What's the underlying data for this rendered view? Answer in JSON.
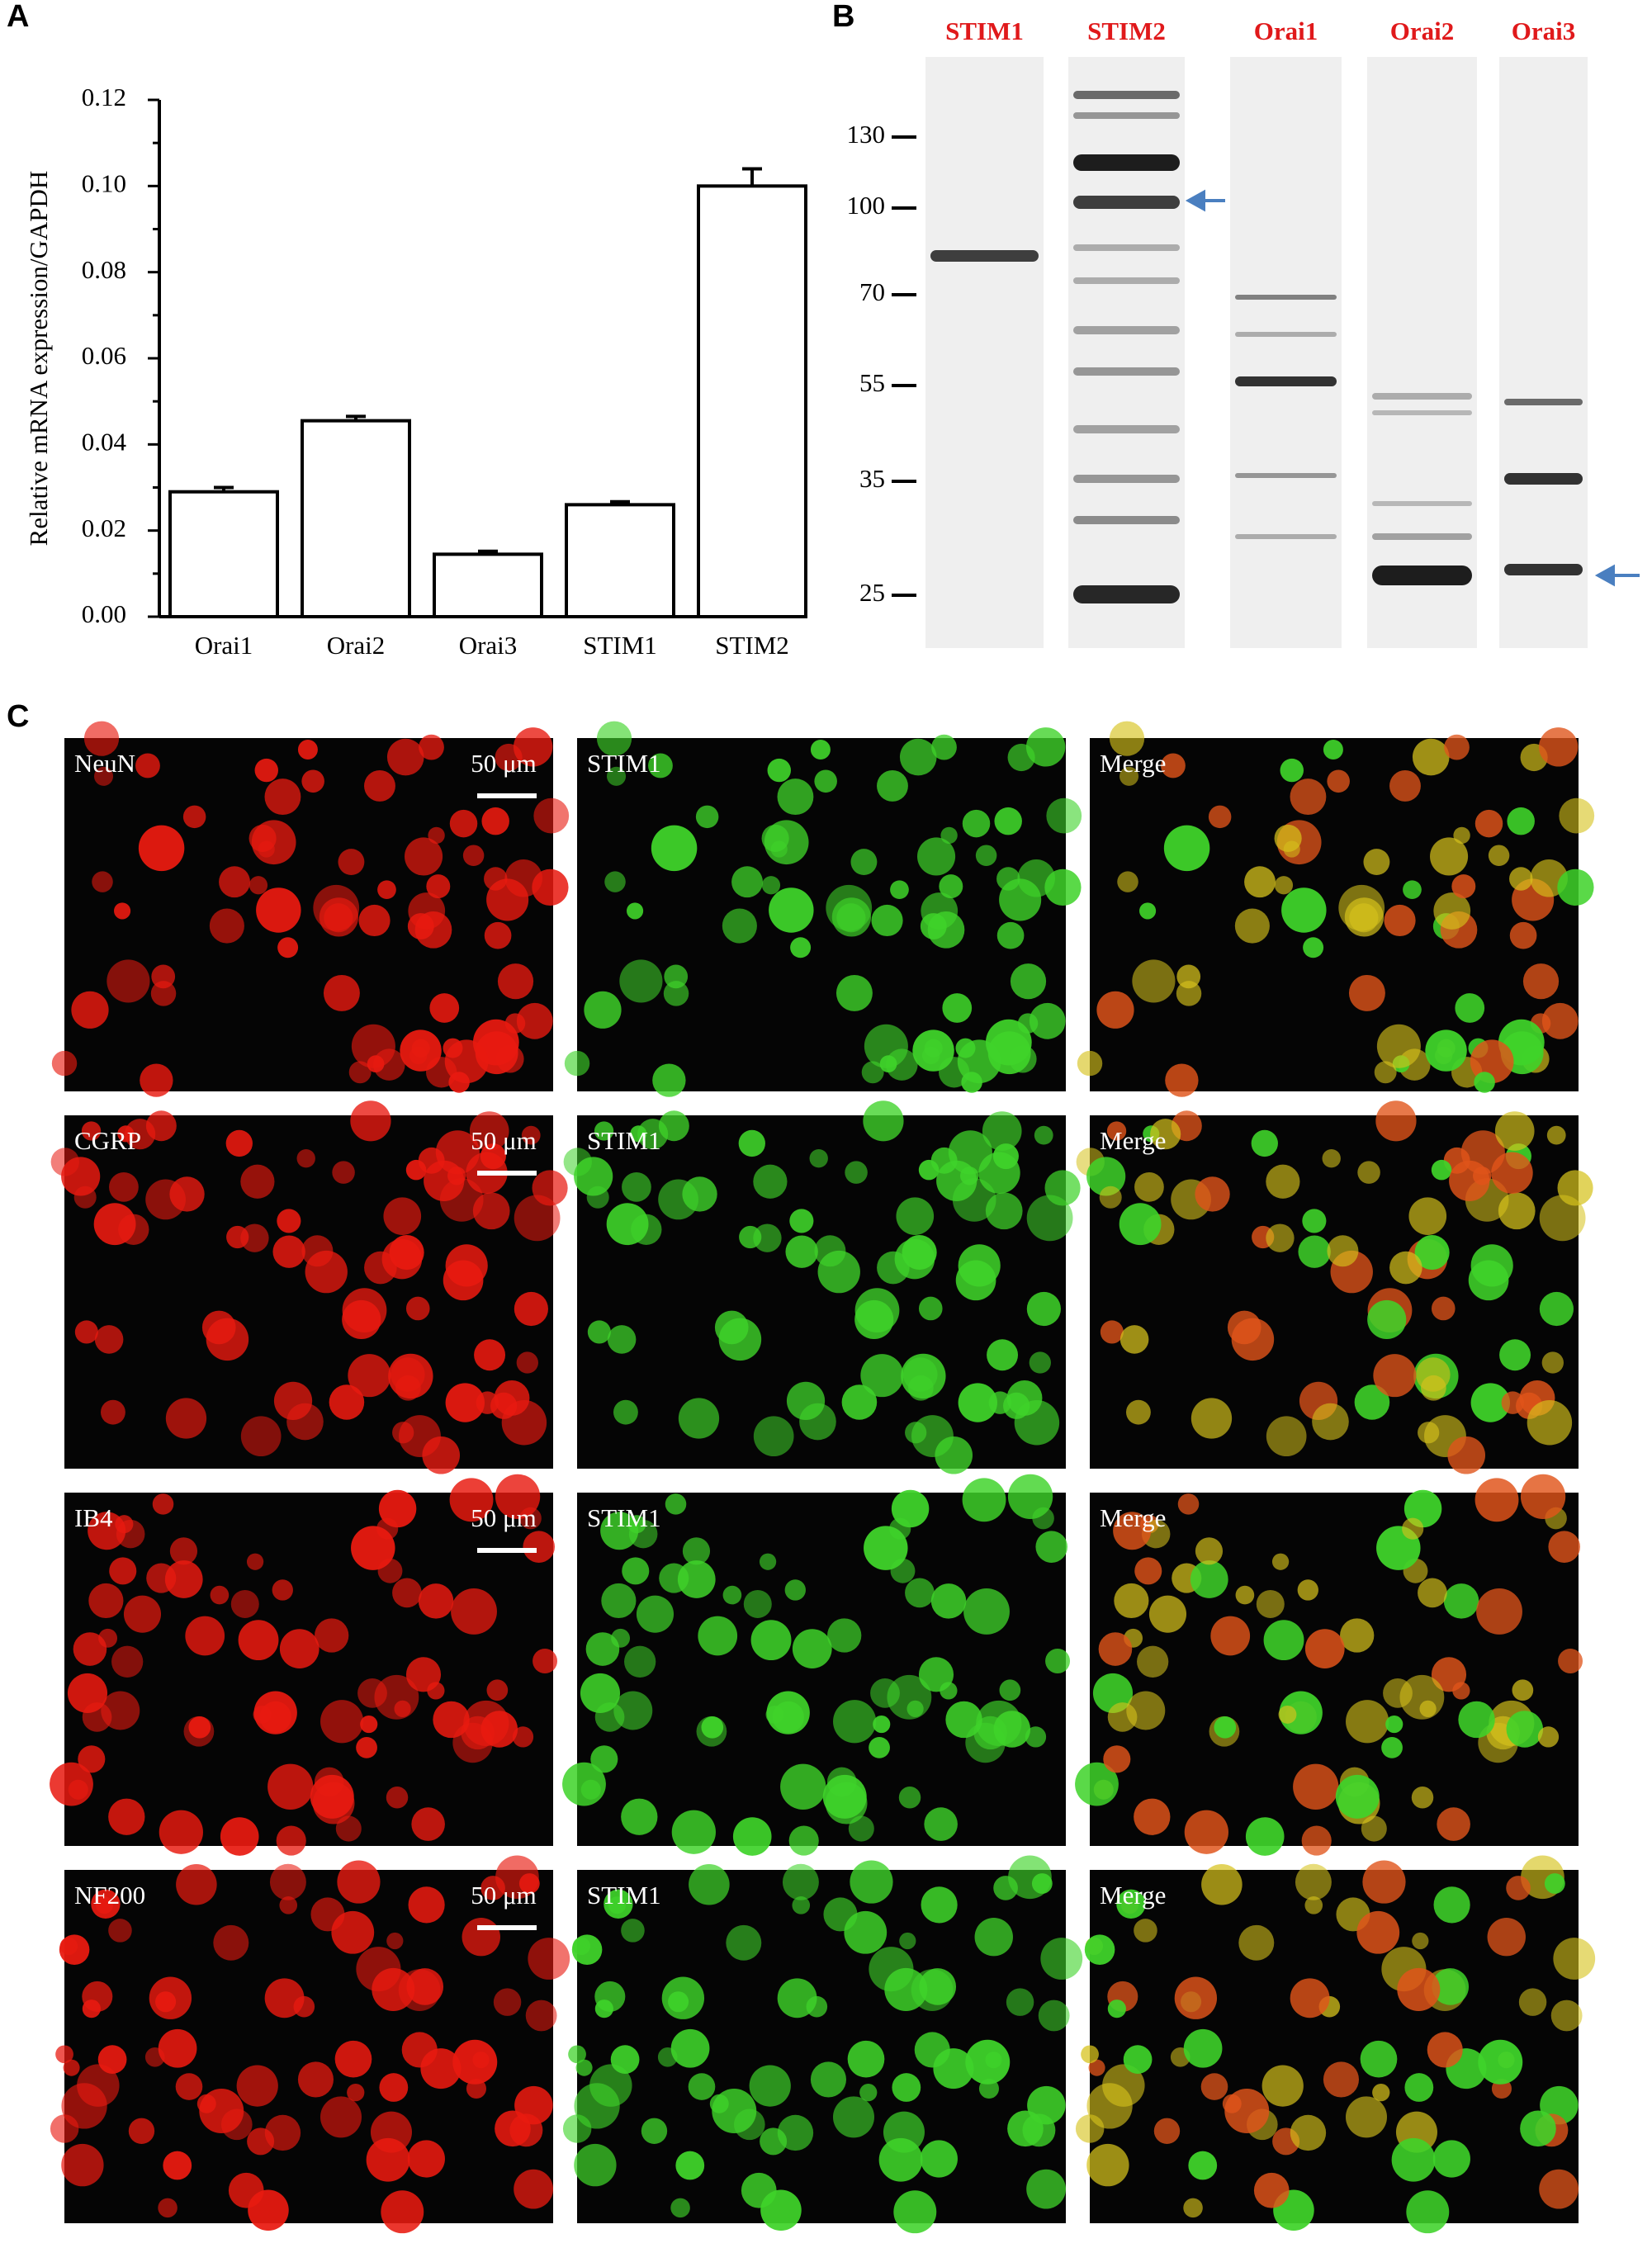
{
  "panels": {
    "a": "A",
    "b": "B",
    "c": "C"
  },
  "chart_data": {
    "type": "bar",
    "y_label": "Relative mRNA expression/GAPDH",
    "categories": [
      "Orai1",
      "Orai2",
      "Orai3",
      "STIM1",
      "STIM2"
    ],
    "values": [
      0.029,
      0.0455,
      0.0145,
      0.026,
      0.1
    ],
    "errors": [
      0.001,
      0.001,
      0.0007,
      0.0007,
      0.004
    ],
    "color": "#ffffff",
    "ylim": [
      0,
      0.12
    ],
    "yticks": [
      {
        "value": 0,
        "label": "0.00"
      },
      {
        "value": 0.02,
        "label": "0.02"
      },
      {
        "value": 0.04,
        "label": "0.04"
      },
      {
        "value": 0.06,
        "label": "0.06"
      },
      {
        "value": 0.08,
        "label": "0.08"
      },
      {
        "value": 0.1,
        "label": "0.10"
      },
      {
        "value": 0.12,
        "label": "0.12"
      }
    ]
  },
  "blot": {
    "lanes": [
      "STIM1",
      "STIM2",
      "Orai1",
      "Orai2",
      "Orai3"
    ],
    "markers": [
      130,
      100,
      70,
      55,
      35,
      25
    ]
  },
  "micrographs": {
    "rows": [
      {
        "stain": "NeuN",
        "scale": "50 μm",
        "stim": "STIM1",
        "merge": "Merge"
      },
      {
        "stain": "CGRP",
        "scale": "50 μm",
        "stim": "STIM1",
        "merge": "Merge"
      },
      {
        "stain": "IB4",
        "scale": "50 μm",
        "stim": "STIM1",
        "merge": "Merge"
      },
      {
        "stain": "NF200",
        "scale": "50 μm",
        "stim": "STIM1",
        "merge": "Merge"
      }
    ]
  }
}
